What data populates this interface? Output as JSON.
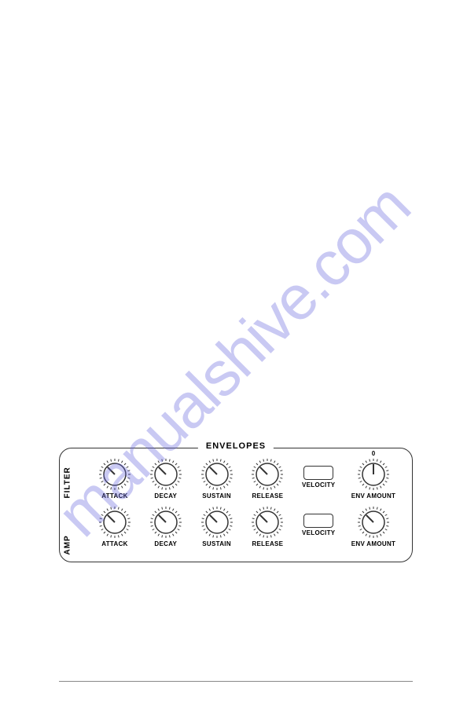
{
  "watermark_text": "manualshive.com",
  "panel": {
    "title": "ENVELOPES",
    "side_labels": {
      "top": "FILTER",
      "bottom": "AMP"
    },
    "rows": [
      {
        "knobs": [
          {
            "label": "ATTACK",
            "angle": 315
          },
          {
            "label": "DECAY",
            "angle": 315
          },
          {
            "label": "SUSTAIN",
            "angle": 315
          },
          {
            "label": "RELEASE",
            "angle": 315
          }
        ],
        "velocity_label": "VELOCITY",
        "amount": {
          "label": "ENV AMOUNT",
          "angle": 0,
          "zero_mark": "0"
        }
      },
      {
        "knobs": [
          {
            "label": "ATTACK",
            "angle": 315
          },
          {
            "label": "DECAY",
            "angle": 315
          },
          {
            "label": "SUSTAIN",
            "angle": 315
          },
          {
            "label": "RELEASE",
            "angle": 315
          }
        ],
        "velocity_label": "VELOCITY",
        "amount": {
          "label": "ENV AMOUNT",
          "angle": 315,
          "zero_mark": ""
        }
      }
    ]
  },
  "colors": {
    "stroke": "#333333",
    "watermark": "rgba(100,100,220,0.35)",
    "background": "#ffffff"
  }
}
